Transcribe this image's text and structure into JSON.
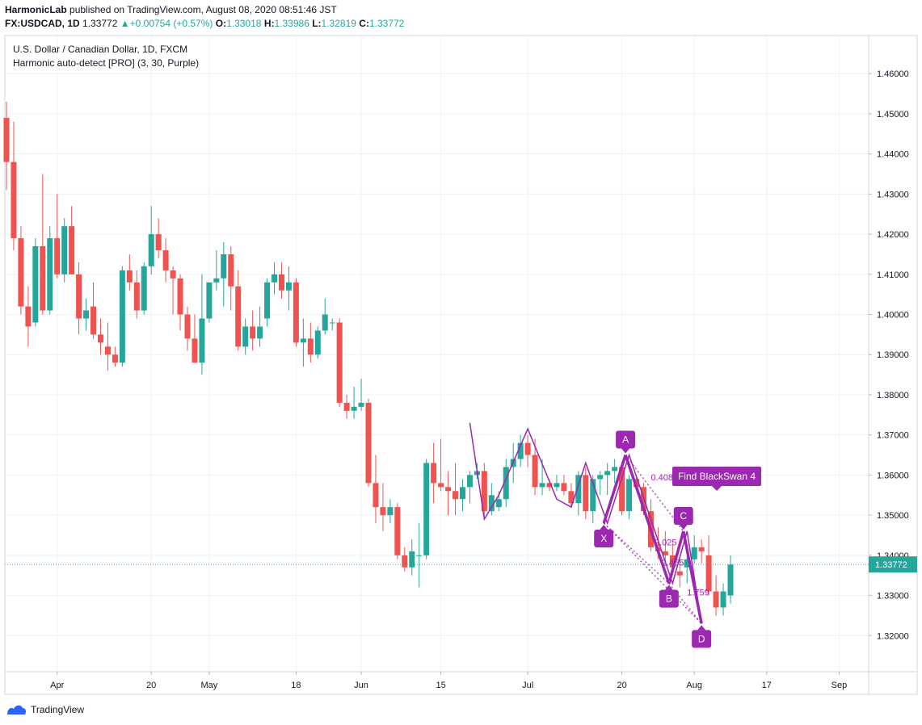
{
  "header": {
    "publisher": "HarmonicLab",
    "published_text": "published on TradingView.com, August 08, 2020 08:51:46 JST",
    "symbol": "FX:USDCAD, 1D",
    "last": "1.33772",
    "change": "+0.00754 (+0.57%)",
    "o_label": "O:",
    "o_val": "1.33018",
    "h_label": "H:",
    "h_val": "1.33986",
    "l_label": "L:",
    "l_val": "1.32819",
    "c_label": "C:",
    "c_val": "1.33772"
  },
  "legend": {
    "line1": "U.S. Dollar / Canadian Dollar, 1D, FXCM",
    "line2": "Harmonic auto-detect [PRO] (3, 30, Purple)"
  },
  "footer": {
    "brand": "TradingView"
  },
  "colors": {
    "up": "#26a69a",
    "down": "#ef5350",
    "pattern": "#9c27b0",
    "grid": "#eef0f3"
  },
  "chart_data": {
    "type": "candlestick",
    "ylim": [
      1.311,
      1.4695
    ],
    "y_ticks": [
      "1.46000",
      "1.45000",
      "1.44000",
      "1.43000",
      "1.42000",
      "1.41000",
      "1.40000",
      "1.39000",
      "1.38000",
      "1.37000",
      "1.36000",
      "1.35000",
      "1.34000",
      "1.33000",
      "1.32000"
    ],
    "x_ticks": [
      {
        "label": "Apr",
        "day": 7
      },
      {
        "label": "20",
        "day": 20
      },
      {
        "label": "May",
        "day": 28
      },
      {
        "label": "18",
        "day": 40
      },
      {
        "label": "Jun",
        "day": 49
      },
      {
        "label": "15",
        "day": 60
      },
      {
        "label": "Jul",
        "day": 72
      },
      {
        "label": "20",
        "day": 85
      },
      {
        "label": "Aug",
        "day": 95
      },
      {
        "label": "17",
        "day": 105
      },
      {
        "label": "Sep",
        "day": 115
      }
    ],
    "last_price": 1.33772,
    "last_price_label": "1.33772",
    "candles": [
      [
        1.449,
        1.453,
        1.431,
        1.438
      ],
      [
        1.438,
        1.448,
        1.416,
        1.419
      ],
      [
        1.419,
        1.422,
        1.4,
        1.402
      ],
      [
        1.402,
        1.407,
        1.392,
        1.397
      ],
      [
        1.398,
        1.419,
        1.397,
        1.417
      ],
      [
        1.417,
        1.435,
        1.4,
        1.401
      ],
      [
        1.401,
        1.422,
        1.4,
        1.419
      ],
      [
        1.419,
        1.43,
        1.409,
        1.41
      ],
      [
        1.41,
        1.424,
        1.408,
        1.422
      ],
      [
        1.422,
        1.427,
        1.41,
        1.41
      ],
      [
        1.41,
        1.413,
        1.395,
        1.399
      ],
      [
        1.399,
        1.404,
        1.396,
        1.401
      ],
      [
        1.402,
        1.408,
        1.394,
        1.395
      ],
      [
        1.395,
        1.399,
        1.39,
        1.393
      ],
      [
        1.392,
        1.398,
        1.386,
        1.39
      ],
      [
        1.39,
        1.392,
        1.387,
        1.388
      ],
      [
        1.388,
        1.412,
        1.387,
        1.411
      ],
      [
        1.411,
        1.415,
        1.406,
        1.408
      ],
      [
        1.408,
        1.411,
        1.399,
        1.401
      ],
      [
        1.401,
        1.413,
        1.4,
        1.412
      ],
      [
        1.412,
        1.427,
        1.41,
        1.42
      ],
      [
        1.42,
        1.424,
        1.414,
        1.416
      ],
      [
        1.416,
        1.419,
        1.408,
        1.411
      ],
      [
        1.411,
        1.412,
        1.4,
        1.409
      ],
      [
        1.409,
        1.41,
        1.396,
        1.4
      ],
      [
        1.4,
        1.402,
        1.391,
        1.394
      ],
      [
        1.394,
        1.4,
        1.388,
        1.388
      ],
      [
        1.388,
        1.41,
        1.385,
        1.399
      ],
      [
        1.399,
        1.408,
        1.398,
        1.408
      ],
      [
        1.408,
        1.416,
        1.406,
        1.409
      ],
      [
        1.409,
        1.418,
        1.402,
        1.415
      ],
      [
        1.415,
        1.417,
        1.401,
        1.407
      ],
      [
        1.407,
        1.411,
        1.391,
        1.392
      ],
      [
        1.392,
        1.399,
        1.39,
        1.397
      ],
      [
        1.397,
        1.401,
        1.391,
        1.394
      ],
      [
        1.394,
        1.402,
        1.392,
        1.397
      ],
      [
        1.399,
        1.409,
        1.397,
        1.408
      ],
      [
        1.408,
        1.413,
        1.405,
        1.41
      ],
      [
        1.41,
        1.413,
        1.404,
        1.406
      ],
      [
        1.406,
        1.412,
        1.401,
        1.408
      ],
      [
        1.408,
        1.409,
        1.392,
        1.393
      ],
      [
        1.393,
        1.399,
        1.387,
        1.394
      ],
      [
        1.394,
        1.398,
        1.388,
        1.39
      ],
      [
        1.39,
        1.397,
        1.389,
        1.396
      ],
      [
        1.396,
        1.404,
        1.395,
        1.4
      ],
      [
        1.398,
        1.399,
        1.396,
        1.398
      ],
      [
        1.398,
        1.399,
        1.377,
        1.378
      ],
      [
        1.378,
        1.38,
        1.374,
        1.376
      ],
      [
        1.376,
        1.382,
        1.374,
        1.377
      ],
      [
        1.377,
        1.384,
        1.376,
        1.378
      ],
      [
        1.378,
        1.379,
        1.357,
        1.358
      ],
      [
        1.358,
        1.365,
        1.348,
        1.352
      ],
      [
        1.352,
        1.358,
        1.346,
        1.35
      ],
      [
        1.35,
        1.354,
        1.348,
        1.352
      ],
      [
        1.352,
        1.353,
        1.339,
        1.34
      ],
      [
        1.34,
        1.342,
        1.336,
        1.337
      ],
      [
        1.337,
        1.344,
        1.335,
        1.341
      ],
      [
        1.34,
        1.348,
        1.332,
        1.34
      ],
      [
        1.34,
        1.364,
        1.339,
        1.363
      ],
      [
        1.363,
        1.368,
        1.353,
        1.358
      ],
      [
        1.358,
        1.369,
        1.356,
        1.357
      ],
      [
        1.357,
        1.361,
        1.35,
        1.356
      ],
      [
        1.356,
        1.363,
        1.35,
        1.354
      ],
      [
        1.354,
        1.359,
        1.351,
        1.357
      ],
      [
        1.357,
        1.361,
        1.353,
        1.36
      ],
      [
        1.36,
        1.363,
        1.359,
        1.361
      ],
      [
        1.361,
        1.363,
        1.349,
        1.351
      ],
      [
        1.351,
        1.358,
        1.35,
        1.355
      ],
      [
        1.352,
        1.356,
        1.351,
        1.354
      ],
      [
        1.354,
        1.364,
        1.352,
        1.362
      ],
      [
        1.362,
        1.368,
        1.358,
        1.364
      ],
      [
        1.364,
        1.37,
        1.362,
        1.368
      ],
      [
        1.368,
        1.37,
        1.362,
        1.365
      ],
      [
        1.365,
        1.369,
        1.355,
        1.357
      ],
      [
        1.357,
        1.364,
        1.355,
        1.358
      ],
      [
        1.358,
        1.359,
        1.356,
        1.357
      ],
      [
        1.357,
        1.36,
        1.356,
        1.358
      ],
      [
        1.358,
        1.36,
        1.355,
        1.356
      ],
      [
        1.356,
        1.358,
        1.352,
        1.353
      ],
      [
        1.353,
        1.361,
        1.35,
        1.36
      ],
      [
        1.36,
        1.362,
        1.349,
        1.351
      ],
      [
        1.351,
        1.36,
        1.348,
        1.359
      ],
      [
        1.359,
        1.361,
        1.355,
        1.36
      ],
      [
        1.36,
        1.363,
        1.355,
        1.361
      ],
      [
        1.361,
        1.364,
        1.358,
        1.362
      ],
      [
        1.362,
        1.363,
        1.35,
        1.351
      ],
      [
        1.351,
        1.36,
        1.349,
        1.359
      ],
      [
        1.359,
        1.36,
        1.356,
        1.357
      ],
      [
        1.357,
        1.358,
        1.35,
        1.351
      ],
      [
        1.351,
        1.354,
        1.341,
        1.342
      ],
      [
        1.342,
        1.347,
        1.339,
        1.341
      ],
      [
        1.341,
        1.346,
        1.339,
        1.34
      ],
      [
        1.34,
        1.343,
        1.336,
        1.337
      ],
      [
        1.336,
        1.339,
        1.332,
        1.335
      ],
      [
        1.337,
        1.34,
        1.333,
        1.339
      ],
      [
        1.339,
        1.345,
        1.338,
        1.342
      ],
      [
        1.342,
        1.344,
        1.338,
        1.341
      ],
      [
        1.34,
        1.345,
        1.33,
        1.331
      ],
      [
        1.331,
        1.335,
        1.325,
        1.327
      ],
      [
        1.327,
        1.333,
        1.325,
        1.331
      ],
      [
        1.33,
        1.34,
        1.328,
        1.3377
      ]
    ],
    "pattern": {
      "name": "Find BlackSwan 4",
      "zigzag": [
        [
          64,
          1.373
        ],
        [
          66,
          1.349
        ],
        [
          68,
          1.355
        ],
        [
          72,
          1.3715
        ],
        [
          76,
          1.354
        ],
        [
          78,
          1.352
        ],
        [
          80,
          1.363
        ],
        [
          83,
          1.348
        ],
        [
          86,
          1.365
        ],
        [
          92,
          1.333
        ],
        [
          94,
          1.346
        ],
        [
          96,
          1.323
        ]
      ],
      "points": [
        {
          "label": "X",
          "day": 82.5,
          "price": 1.348,
          "below": true
        },
        {
          "label": "A",
          "day": 85.5,
          "price": 1.365,
          "below": false
        },
        {
          "label": "B",
          "day": 91.5,
          "price": 1.333,
          "below": true
        },
        {
          "label": "C",
          "day": 93.5,
          "price": 1.346,
          "below": false
        },
        {
          "label": "D",
          "day": 96.0,
          "price": 1.323,
          "below": true
        }
      ],
      "ratios": [
        {
          "label": "0.408",
          "day": 89.0,
          "price": 1.3587
        },
        {
          "label": "2.025",
          "day": 89.5,
          "price": 1.3425
        },
        {
          "label": "2.455",
          "day": 90.5,
          "price": 1.3375
        },
        {
          "label": "1.759",
          "day": 94.0,
          "price": 1.33
        }
      ]
    }
  }
}
